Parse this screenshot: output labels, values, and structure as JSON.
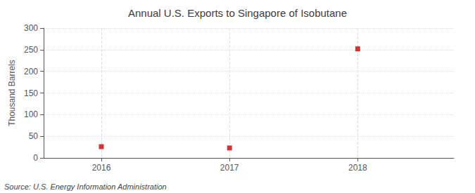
{
  "chart_data": {
    "type": "scatter",
    "title": "Annual U.S. Exports to Singapore of Isobutane",
    "ylabel": "Thousand Barrels",
    "annotation": "Source: U.S. Energy Information Administration",
    "x": [
      2016,
      2017,
      2018
    ],
    "values": [
      26,
      23,
      252
    ],
    "color": "#cc0000",
    "marker": "square",
    "xlim": [
      2015.55,
      2018.75
    ],
    "xticks": [
      2016,
      2017,
      2018
    ],
    "ylim": [
      0,
      300
    ],
    "yticks": [
      0,
      50,
      100,
      150,
      200,
      250,
      300
    ],
    "grid": true
  }
}
